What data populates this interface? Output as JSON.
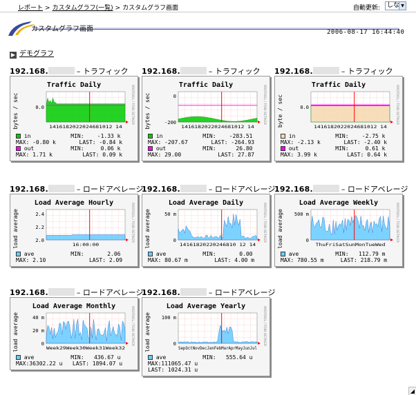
{
  "breadcrumb": {
    "report": "レポート",
    "list": "カスタムグラフ(一覧)",
    "current": "カスタムグラフ画面",
    "sep": ">"
  },
  "autoupdate": {
    "label": "自動更新:",
    "value": "しない"
  },
  "page": {
    "title": "カスタムグラフ画面",
    "datetime": "2006-08-17 16:44:40",
    "section": "デモグラフ"
  },
  "colors": {
    "in": "#00cc00",
    "out": "#ff00ff",
    "ave": "#66ccff",
    "grid": "#ff0000",
    "bg": "#f5f5f5"
  },
  "graphs": [
    {
      "prefix": "192.168.",
      "suffix": "– トラフィック",
      "title": "Traffic Daily",
      "ylabel": "bytes / sec",
      "yticks": [
        "0.0"
      ],
      "xticks": "1416182022024681012 14",
      "ylim": [
        -1.5,
        0.5
      ],
      "legend": [
        [
          "in",
          "#00cc00",
          "MIN:",
          "-1.33 k"
        ],
        [
          "MAX:",
          "-0.80 k",
          "LAST:",
          "-0.84 k"
        ],
        [
          "out",
          "#ff00ff",
          "MIN:",
          "0.06 k"
        ],
        [
          "MAX:",
          "1.71 k",
          "LAST:",
          "0.09 k"
        ]
      ]
    },
    {
      "prefix": "192.168.",
      "suffix": "– トラフィック",
      "title": "Traffic Daily",
      "ylabel": "bytes / sec",
      "yticks": [
        "0",
        "-200"
      ],
      "xticks": "1416182022024681012 14",
      "ylim": [
        -300,
        50
      ],
      "legend": [
        [
          "in",
          "#00cc00",
          "MIN:",
          "-283.51"
        ],
        [
          "MAX:",
          "-207.67",
          "LAST:",
          "-264.93"
        ],
        [
          "out",
          "#ff00ff",
          "MIN:",
          "26.80"
        ],
        [
          "MAX:",
          "29.00",
          "LAST:",
          "27.87"
        ]
      ]
    },
    {
      "prefix": "192.168.",
      "suffix": "– トラフィック",
      "title": "Traffic Daily",
      "ylabel": "byte / sec",
      "yticks": [
        "0.0"
      ],
      "xticks": "1416182022024681012 14",
      "ylim": [
        -3,
        1
      ],
      "legend": [
        [
          "in",
          "#f5d9b0",
          "MIN:",
          "-2.75 k"
        ],
        [
          "MAX:",
          "-2.13 k",
          "LAST:",
          "-2.40 k"
        ],
        [
          "out",
          "#ff00ff",
          "MIN:",
          "0.61 k"
        ],
        [
          "MAX:",
          "3.99 k",
          "LAST:",
          "0.64 k"
        ]
      ]
    },
    {
      "prefix": "192.168.",
      "suffix": "– ロードアベレージ",
      "title": "Load Average Hourly",
      "ylabel": "load average",
      "yticks": [
        "2.4",
        "2.2",
        "2.0"
      ],
      "xticks": "16:00:00",
      "ylim": [
        2.0,
        2.5
      ],
      "legend": [
        [
          "ave",
          "#66ccff",
          "MIN:",
          "2.06"
        ],
        [
          "MAX:",
          "2.10",
          "LAST:",
          "2.09"
        ]
      ]
    },
    {
      "prefix": "192.168.",
      "suffix": "– ロードアベレージ",
      "title": "Load Average Daily",
      "ylabel": "load average",
      "yticks": [
        "50 m",
        "0"
      ],
      "xticks": "14161820220246810 12 14",
      "ylim": [
        0,
        90
      ],
      "legend": [
        [
          "ave",
          "#66ccff",
          "MIN:",
          "0.00"
        ],
        [
          "MAX:",
          "80.67 m",
          "LAST:",
          "4.00 m"
        ]
      ]
    },
    {
      "prefix": "192.168.",
      "suffix": "– ロードアベレージ",
      "title": "Load Average Weekly",
      "ylabel": "load average",
      "yticks": [
        "500 m",
        "0"
      ],
      "xticks": "ThuFriSatSunMonTueWed",
      "ylim": [
        0,
        800
      ],
      "legend": [
        [
          "ave",
          "#66ccff",
          "MIN:",
          "112.79 m"
        ],
        [
          "MAX:",
          "780.55 m",
          "LAST:",
          "218.79 m"
        ]
      ]
    },
    {
      "prefix": "192.168.",
      "suffix": "– ロードアベレージ",
      "title": "Load Average Monthly",
      "ylabel": "load average",
      "yticks": [
        "40 m",
        "20 m",
        "0"
      ],
      "xticks": "Week29Week30Week31Week32",
      "ylim": [
        0,
        45
      ],
      "legend": [
        [
          "ave",
          "#66ccff",
          "MIN:",
          "436.67 u"
        ],
        [
          "MAX:36302.22 u",
          "",
          "LAST:",
          "1894.07 u"
        ]
      ]
    },
    {
      "prefix": "192.168.",
      "suffix": "– ロードアベレージ",
      "title": "Load Average Yearly",
      "ylabel": "load average",
      "yticks": [
        "100 m",
        "0"
      ],
      "xticks": "SepOctNovDecJanFebMarAprMayJunJul",
      "ylim": [
        0,
        120
      ],
      "legend": [
        [
          "ave",
          "#66ccff",
          "MIN:",
          "555.64 u"
        ],
        [
          "MAX:111065.47 u",
          "",
          "",
          ""
        ],
        [
          "LAST:",
          "1024.31 u",
          "",
          ""
        ]
      ]
    }
  ]
}
